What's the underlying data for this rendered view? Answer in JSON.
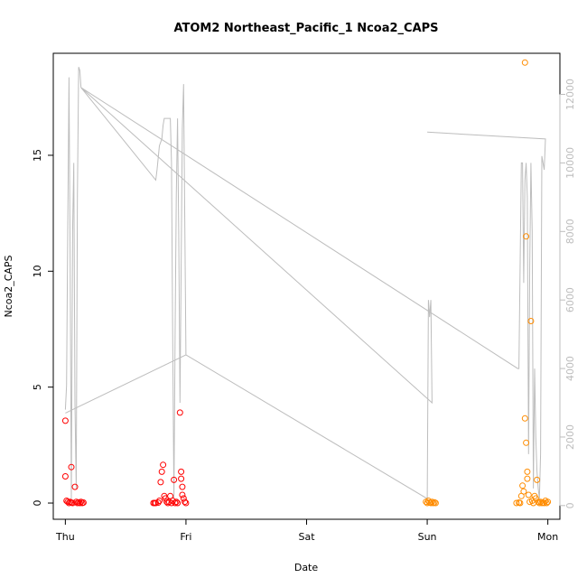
{
  "chart_data": {
    "type": "scatter",
    "title": "ATOM2 Northeast_Pacific_1 Ncoa2_CAPS",
    "xlabel": "Date",
    "ylabel": "Ncoa2_CAPS",
    "x_ticks": [
      "Thu",
      "Fri",
      "Sat",
      "Sun",
      "Mon"
    ],
    "y_ticks": [
      "0",
      "5",
      "10",
      "15"
    ],
    "y_right_ticks": [
      "0",
      "2000",
      "4000",
      "6000",
      "8000",
      "10000",
      "12000"
    ],
    "xlim": [
      -0.1,
      4.1
    ],
    "ylim": [
      -0.7,
      19.4
    ],
    "y_right_lim": [
      -400,
      13200
    ],
    "grid": false,
    "legend": "none",
    "colors": {
      "series_a": "#ff0000",
      "series_b": "#ff8c00",
      "line": "#bdbdbd"
    },
    "series": [
      {
        "color": "#ff0000",
        "points": [
          [
            0.0,
            3.55
          ],
          [
            0.0,
            1.15
          ],
          [
            0.01,
            0.1
          ],
          [
            0.02,
            0.05
          ],
          [
            0.03,
            0.0
          ],
          [
            0.04,
            0.05
          ],
          [
            0.05,
            0.02
          ],
          [
            0.06,
            0.0
          ],
          [
            0.05,
            1.55
          ],
          [
            0.08,
            0.7
          ],
          [
            0.09,
            0.05
          ],
          [
            0.1,
            0.0
          ],
          [
            0.11,
            0.03
          ],
          [
            0.12,
            0.0
          ],
          [
            0.13,
            0.05
          ],
          [
            0.14,
            0.0
          ],
          [
            0.15,
            0.02
          ],
          [
            0.73,
            0.0
          ],
          [
            0.74,
            0.0
          ],
          [
            0.75,
            0.0
          ],
          [
            0.77,
            0.02
          ],
          [
            0.78,
            0.1
          ],
          [
            0.79,
            0.9
          ],
          [
            0.8,
            1.35
          ],
          [
            0.81,
            1.65
          ],
          [
            0.82,
            0.3
          ],
          [
            0.83,
            0.2
          ],
          [
            0.84,
            0.05
          ],
          [
            0.85,
            0.0
          ],
          [
            0.86,
            0.05
          ],
          [
            0.87,
            0.3
          ],
          [
            0.88,
            0.0
          ],
          [
            0.89,
            0.1
          ],
          [
            0.9,
            1.0
          ],
          [
            0.91,
            0.0
          ],
          [
            0.92,
            0.05
          ],
          [
            0.93,
            0.0
          ],
          [
            0.95,
            3.9
          ],
          [
            0.96,
            1.35
          ],
          [
            0.96,
            1.05
          ],
          [
            0.97,
            0.7
          ],
          [
            0.97,
            0.35
          ],
          [
            0.98,
            0.2
          ],
          [
            0.99,
            0.05
          ],
          [
            1.0,
            0.0
          ]
        ]
      },
      {
        "color": "#ff8c00",
        "points": [
          [
            2.99,
            0.05
          ],
          [
            3.0,
            0.0
          ],
          [
            3.01,
            0.1
          ],
          [
            3.02,
            0.02
          ],
          [
            3.03,
            0.0
          ],
          [
            3.04,
            0.05
          ],
          [
            3.05,
            0.0
          ],
          [
            3.06,
            0.03
          ],
          [
            3.07,
            0.0
          ],
          [
            3.74,
            0.0
          ],
          [
            3.76,
            0.02
          ],
          [
            3.77,
            0.0
          ],
          [
            3.78,
            0.3
          ],
          [
            3.79,
            0.75
          ],
          [
            3.8,
            0.5
          ],
          [
            3.81,
            19.0
          ],
          [
            3.81,
            3.65
          ],
          [
            3.82,
            11.5
          ],
          [
            3.82,
            2.6
          ],
          [
            3.83,
            1.35
          ],
          [
            3.83,
            1.05
          ],
          [
            3.84,
            0.35
          ],
          [
            3.85,
            0.05
          ],
          [
            3.86,
            7.85
          ],
          [
            3.87,
            0.1
          ],
          [
            3.88,
            0.0
          ],
          [
            3.89,
            0.3
          ],
          [
            3.9,
            0.2
          ],
          [
            3.91,
            1.0
          ],
          [
            3.92,
            0.05
          ],
          [
            3.93,
            0.0
          ],
          [
            3.94,
            0.05
          ],
          [
            3.95,
            0.0
          ],
          [
            3.96,
            0.02
          ],
          [
            3.97,
            0.0
          ],
          [
            3.98,
            0.1
          ],
          [
            3.99,
            0.0
          ],
          [
            4.0,
            0.05
          ]
        ]
      }
    ],
    "line_series": {
      "axis": "right",
      "color": "#bdbdbd",
      "points": [
        [
          0.0,
          2800
        ],
        [
          0.01,
          3500
        ],
        [
          0.02,
          8000
        ],
        [
          0.03,
          12500
        ],
        [
          0.04,
          7000
        ],
        [
          0.05,
          200
        ],
        [
          0.06,
          8000
        ],
        [
          0.07,
          10000
        ],
        [
          0.08,
          3000
        ],
        [
          0.09,
          500
        ],
        [
          0.1,
          9000
        ],
        [
          0.11,
          12800
        ],
        [
          0.12,
          12700
        ],
        [
          0.13,
          12200
        ],
        [
          0.75,
          9500
        ],
        [
          0.76,
          9800
        ],
        [
          0.78,
          10500
        ],
        [
          0.8,
          10700
        ],
        [
          0.81,
          11100
        ],
        [
          0.82,
          11300
        ],
        [
          0.86,
          11300
        ],
        [
          0.87,
          11300
        ],
        [
          0.88,
          10000
        ],
        [
          0.89,
          5000
        ],
        [
          0.9,
          200
        ],
        [
          0.91,
          5000
        ],
        [
          0.92,
          9000
        ],
        [
          0.93,
          11300
        ],
        [
          0.94,
          8000
        ],
        [
          0.95,
          3000
        ],
        [
          0.96,
          7000
        ],
        [
          0.97,
          11000
        ],
        [
          0.98,
          12300
        ],
        [
          1.0,
          4400
        ],
        [
          0.0,
          2700
        ],
        [
          1.0,
          4400
        ],
        [
          3.0,
          200
        ],
        [
          3.01,
          6000
        ],
        [
          3.02,
          5500
        ],
        [
          3.03,
          6000
        ],
        [
          3.04,
          3000
        ],
        [
          0.13,
          12200
        ],
        [
          3.75,
          4000
        ],
        [
          3.76,
          4000
        ],
        [
          3.78,
          10000
        ],
        [
          3.79,
          10000
        ],
        [
          3.8,
          6500
        ],
        [
          3.81,
          9500
        ],
        [
          3.82,
          10000
        ],
        [
          3.83,
          9000
        ],
        [
          3.84,
          1500
        ],
        [
          3.85,
          7000
        ],
        [
          3.86,
          10000
        ],
        [
          3.87,
          8000
        ],
        [
          3.88,
          500
        ],
        [
          3.89,
          4000
        ],
        [
          3.9,
          2000
        ],
        [
          3.91,
          1000
        ],
        [
          3.92,
          500
        ],
        [
          3.93,
          200
        ],
        [
          3.94,
          1500
        ],
        [
          3.95,
          10200
        ],
        [
          3.96,
          10000
        ],
        [
          3.97,
          9800
        ],
        [
          3.98,
          10700
        ],
        [
          3.0,
          10900
        ],
        [
          3.98,
          10700
        ]
      ]
    }
  }
}
